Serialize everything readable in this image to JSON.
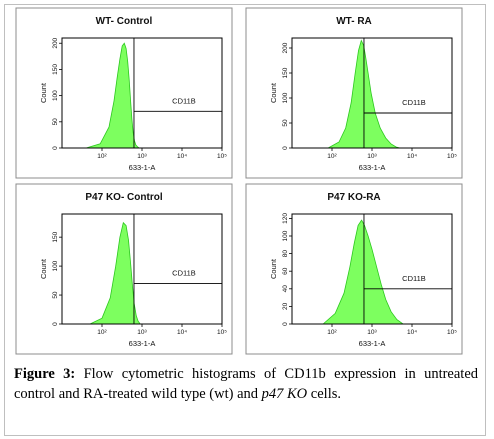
{
  "chart_data": [
    {
      "type": "histogram",
      "title": "WT- Control",
      "xlabel": "633-1-A",
      "ylabel": "Count",
      "xscale": "log",
      "xlim": [
        10,
        100000
      ],
      "xticks": [
        "10²",
        "10³",
        "10⁴",
        "10⁵"
      ],
      "ylim": [
        0,
        210
      ],
      "yticks": [
        "0",
        "50",
        "100",
        "150",
        "200"
      ],
      "gate": {
        "label": "CD11B",
        "x_start": 630,
        "x_end": 100000,
        "y_level": 70
      },
      "fill_color": "#7dff5f",
      "outline_color": "#2cc81e",
      "x": [
        40,
        90,
        150,
        200,
        240,
        280,
        320,
        360,
        400,
        440,
        480,
        520,
        560,
        600,
        650,
        700,
        780,
        850
      ],
      "y": [
        0,
        8,
        40,
        90,
        135,
        170,
        195,
        200,
        190,
        165,
        130,
        90,
        55,
        30,
        14,
        6,
        2,
        0
      ]
    },
    {
      "type": "histogram",
      "title": "WT- RA",
      "xlabel": "633-1-A",
      "ylabel": "Count",
      "xscale": "log",
      "xlim": [
        10,
        100000
      ],
      "xticks": [
        "10²",
        "10³",
        "10⁴",
        "10⁵"
      ],
      "ylim": [
        0,
        220
      ],
      "yticks": [
        "0",
        "50",
        "100",
        "150",
        "200"
      ],
      "gate": {
        "label": "CD11B",
        "x_start": 630,
        "x_end": 100000,
        "y_level": 70
      },
      "fill_color": "#7dff5f",
      "outline_color": "#2cc81e",
      "x": [
        80,
        150,
        220,
        300,
        380,
        460,
        540,
        620,
        700,
        800,
        950,
        1200,
        1600,
        2200,
        3000,
        4000,
        5000
      ],
      "y": [
        0,
        12,
        40,
        90,
        150,
        195,
        215,
        205,
        180,
        150,
        110,
        70,
        40,
        20,
        8,
        2,
        0
      ]
    },
    {
      "type": "histogram",
      "title": "P47 KO- Control",
      "xlabel": "633-1-A",
      "ylabel": "Count",
      "xscale": "log",
      "xlim": [
        10,
        100000
      ],
      "xticks": [
        "10²",
        "10³",
        "10⁴",
        "10⁵"
      ],
      "ylim": [
        0,
        190
      ],
      "yticks": [
        "0",
        "50",
        "100",
        "150"
      ],
      "gate": {
        "label": "CD11B",
        "x_start": 630,
        "x_end": 100000,
        "y_level": 70
      },
      "fill_color": "#7dff5f",
      "outline_color": "#2cc81e",
      "x": [
        50,
        100,
        160,
        220,
        280,
        340,
        400,
        460,
        520,
        580,
        640,
        720,
        800,
        900
      ],
      "y": [
        0,
        10,
        45,
        100,
        150,
        175,
        170,
        145,
        105,
        65,
        35,
        14,
        5,
        0
      ]
    },
    {
      "type": "histogram",
      "title": "P47 KO-RA",
      "xlabel": "633-1-A",
      "ylabel": "Count",
      "xscale": "log",
      "xlim": [
        10,
        100000
      ],
      "xticks": [
        "10²",
        "10³",
        "10⁴",
        "10⁵"
      ],
      "ylim": [
        0,
        125
      ],
      "yticks": [
        "0",
        "20",
        "40",
        "60",
        "80",
        "100",
        "120"
      ],
      "gate": {
        "label": "CD11B",
        "x_start": 630,
        "x_end": 100000,
        "y_level": 40
      },
      "fill_color": "#7dff5f",
      "outline_color": "#2cc81e",
      "x": [
        60,
        120,
        200,
        280,
        360,
        450,
        550,
        650,
        800,
        1000,
        1300,
        1700,
        2200,
        3000,
        4200,
        6000
      ],
      "y": [
        0,
        12,
        35,
        65,
        92,
        112,
        118,
        112,
        100,
        85,
        65,
        45,
        28,
        14,
        5,
        0
      ]
    }
  ],
  "caption": {
    "label": "Figure 3:",
    "text_pre": " Flow cytometric histograms of CD11b expression in untreated control and RA-treated wild type (wt) and ",
    "italic": "p47 KO",
    "text_post": " cells."
  }
}
